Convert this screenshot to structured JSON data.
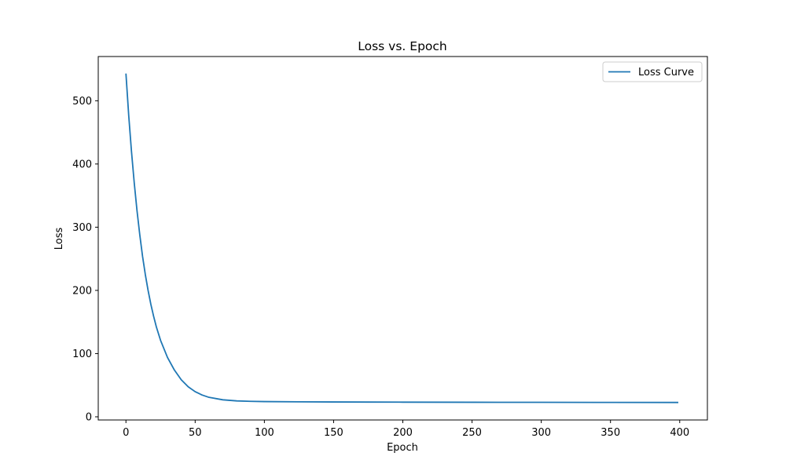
{
  "chart_data": {
    "type": "line",
    "title": "Loss vs. Epoch",
    "xlabel": "Epoch",
    "ylabel": "Loss",
    "xlim": [
      -20,
      420
    ],
    "ylim": [
      -5,
      570
    ],
    "xticks": [
      0,
      50,
      100,
      150,
      200,
      250,
      300,
      350,
      400
    ],
    "yticks": [
      0,
      100,
      200,
      300,
      400,
      500
    ],
    "grid": false,
    "legend_position": "top-right",
    "series": [
      {
        "name": "Loss Curve",
        "color": "#1f77b4",
        "x": [
          0,
          2,
          4,
          6,
          8,
          10,
          12,
          14,
          16,
          18,
          20,
          22,
          25,
          30,
          35,
          40,
          45,
          50,
          55,
          60,
          70,
          80,
          90,
          100,
          125,
          150,
          175,
          200,
          250,
          300,
          350,
          399
        ],
        "y": [
          543,
          477,
          420,
          370,
          326,
          288,
          254,
          225,
          200,
          178,
          159,
          142,
          121,
          94,
          74,
          58.5,
          47.5,
          39.8,
          34.5,
          30.8,
          26.9,
          25.2,
          24.5,
          24.1,
          23.7,
          23.5,
          23.3,
          23.2,
          23.0,
          22.9,
          22.8,
          22.7
        ]
      }
    ]
  }
}
